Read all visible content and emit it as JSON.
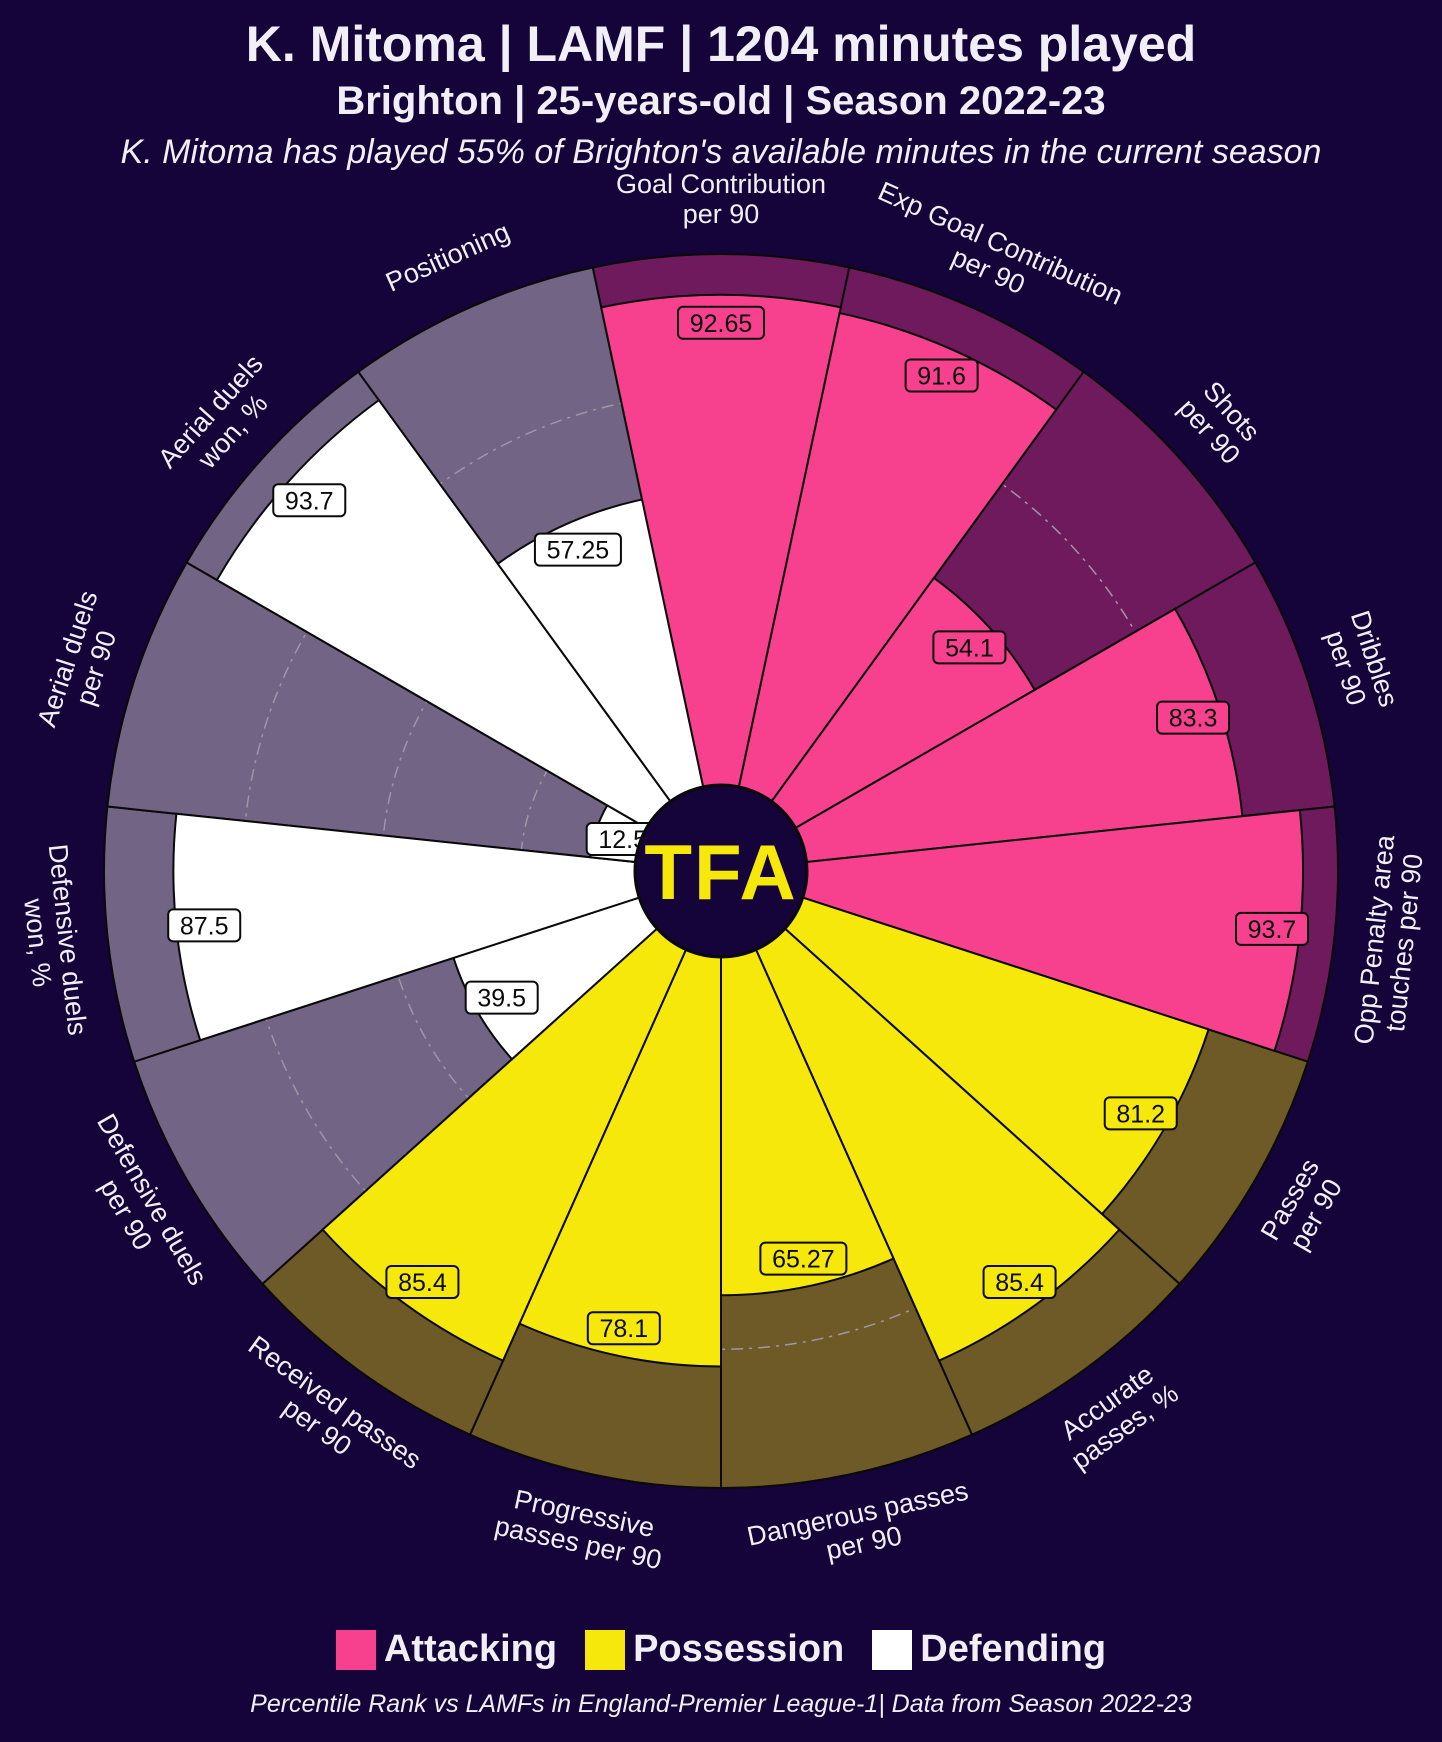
{
  "header": {
    "title": "K. Mitoma | LAMF | 1204 minutes played",
    "subtitle": "Brighton | 25-years-old | Season 2022-23",
    "note": "K. Mitoma has played 55% of Brighton's available minutes in the current season"
  },
  "center_logo": "TFA",
  "legend": [
    {
      "label": "Attacking",
      "color": "#f7418f"
    },
    {
      "label": "Possession",
      "color": "#f5e80a"
    },
    {
      "label": "Defending",
      "color": "#ffffff"
    }
  ],
  "footer": "Percentile Rank vs LAMFs in England-Premier League-1| Data from Season 2022-23",
  "colors": {
    "background": "#14043a",
    "attacking_fill": "#f7418f",
    "attacking_bg": "#6e1a5c",
    "possession_fill": "#f5e80a",
    "possession_bg": "#6e5a26",
    "defending_fill": "#ffffff",
    "defending_bg": "#716484",
    "logo_text": "#f5e80a"
  },
  "chart_data": {
    "type": "radar",
    "ylim": [
      0,
      100
    ],
    "grid": true,
    "legend_position": "bottom",
    "categories": [
      "Goal Contribution\nper 90",
      "Exp Goal Contribution\nper 90",
      "Shots\nper 90",
      "Dribbles\nper 90",
      "Opp Penalty area\ntouches per 90",
      "Passes\nper 90",
      "Accurate\npasses, %",
      "Dangerous passes\nper 90",
      "Progressive\npasses per 90",
      "Received passes\nper 90",
      "Defensive duels\nper 90",
      "Defensive duels\nwon, %",
      "Aerial duels\nper 90",
      "Aerial duels\nwon, %",
      "Positioning"
    ],
    "groups": [
      "Attacking",
      "Attacking",
      "Attacking",
      "Attacking",
      "Attacking",
      "Possession",
      "Possession",
      "Possession",
      "Possession",
      "Possession",
      "Defending",
      "Defending",
      "Defending",
      "Defending",
      "Defending"
    ],
    "values": [
      92.65,
      91.6,
      54.1,
      83.3,
      93.7,
      81.2,
      85.4,
      65.27,
      78.1,
      85.4,
      39.5,
      87.5,
      12.5,
      93.7,
      57.25
    ],
    "value_labels": [
      "92.65",
      "91.6",
      "54.1",
      "83.3",
      "93.7",
      "81.2",
      "85.4",
      "65.27",
      "78.1",
      "85.4",
      "39.5",
      "87.5",
      "12.5",
      "93.7",
      "57.25"
    ]
  }
}
